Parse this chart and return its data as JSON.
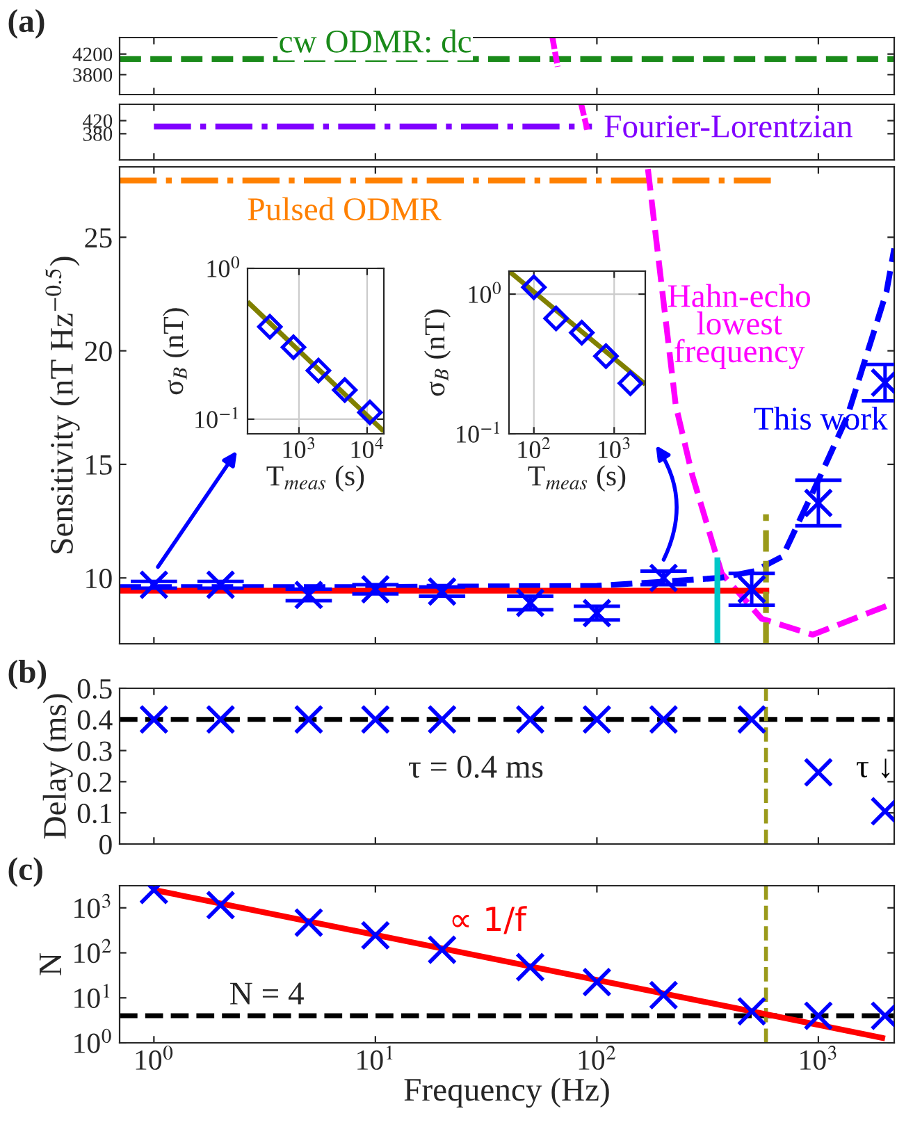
{
  "chart_data": [
    {
      "type": "line",
      "title": "(a)",
      "xlim": [
        0.7,
        2200
      ],
      "xticks": [
        1,
        10,
        100,
        1000
      ],
      "log": "xy",
      "ylim": [
        3450,
        4550
      ],
      "yticks": [
        3800,
        4200
      ],
      "tick_labels": "y",
      "series": [
        {
          "name": "cw ODMR: dc",
          "color": "#1a8a1a",
          "line_style": "dashed",
          "x": [
            0.7,
            2200
          ],
          "values": [
            4100,
            4100
          ]
        },
        {
          "color": "#ff00ff",
          "line_style": "dashed",
          "x": [
            63,
            66.5
          ],
          "values": [
            4550,
            3950
          ]
        }
      ]
    },
    {
      "type": "line",
      "xlim": [
        0.7,
        2200
      ],
      "xticks": [
        1,
        10,
        100,
        1000
      ],
      "log": "x",
      "ylim": [
        300,
        470
      ],
      "yticks": [
        380,
        420
      ],
      "tick_labels": "y",
      "series": [
        {
          "name": "Fourier-Lorentzian",
          "color": "#8000ff",
          "line_style": "dashdot",
          "x": [
            1,
            95
          ],
          "values": [
            402,
            402
          ]
        },
        {
          "color": "#ff00ff",
          "line_style": "dashed",
          "x": [
            85,
            91
          ],
          "values": [
            470,
            385
          ]
        }
      ]
    },
    {
      "type": "line",
      "ylabel": "Sensitivity (nT Hz$^{−0.5}$)",
      "xlim": [
        0.7,
        2200
      ],
      "xticks": [
        1,
        10,
        100,
        1000
      ],
      "log": "x",
      "ylim": [
        7.1,
        28.1
      ],
      "yticks": [
        10,
        15,
        20,
        25
      ],
      "tick_labels": "y",
      "series": [
        {
          "name": "Pulsed ODMR",
          "color": "#ff8000",
          "line_style": "dashdot",
          "x": [
            0.7,
            610
          ],
          "values": [
            27.5,
            27.5
          ]
        },
        {
          "name": "Hahn-echo\nlowest\nfrequency",
          "color": "#ff00ff",
          "line_style": "dashed",
          "x": [
            170,
            227,
            270,
            366,
            555,
            944,
            2200
          ],
          "values": [
            28.0,
            17.6,
            14.5,
            10.2,
            8.2,
            7.5,
            8.9
          ]
        },
        {
          "name": "This work",
          "color": "#0000ff",
          "line_style": "dashed",
          "x": [
            0.7,
            10,
            100,
            360,
            515,
            690,
            1000,
            1350,
            2030,
            2200
          ],
          "values": [
            9.6,
            9.6,
            9.65,
            10.0,
            10.3,
            10.95,
            14.3,
            17.1,
            22.6,
            24.5
          ]
        },
        {
          "color": "#ff0000",
          "line_style": "solid",
          "x": [
            0.7,
            600
          ],
          "values": [
            9.44,
            9.44
          ]
        },
        {
          "type": "scatter",
          "marker": "cross",
          "color": "#0000ff",
          "x": [
            1,
            2,
            5,
            10,
            20,
            50,
            100,
            200,
            500,
            1000,
            2000
          ],
          "values": [
            9.7,
            9.7,
            9.25,
            9.5,
            9.4,
            8.9,
            8.45,
            10.0,
            9.5,
            13.3,
            18.6
          ],
          "errors": [
            0.15,
            0.15,
            0.25,
            0.2,
            0.2,
            0.3,
            0.3,
            0.3,
            0.7,
            1.0,
            0.8
          ]
        },
        {
          "color": "#00c8c8",
          "line_style": "solid",
          "x": [
            350,
            350
          ],
          "values": [
            7.1,
            10.9
          ]
        },
        {
          "color": "#9a9a1a",
          "line_style": "dashed",
          "x": [
            580,
            580
          ],
          "values": [
            7.1,
            12.8
          ]
        }
      ]
    },
    {
      "type": "scatter",
      "xlabel": "T$_{meas}$ (s)",
      "ylabel": "σ$_{B}$ (nT)",
      "log": "xy",
      "xlim": [
        176,
        17600
      ],
      "ylim": [
        0.08,
        1
      ],
      "xticks": [
        {
          "value": 1000,
          "label": "10$^{3}$"
        },
        {
          "value": 10000,
          "label": "10$^{4}$"
        }
      ],
      "yticks": [
        {
          "value": 0.1,
          "label": "10$^{−1}$"
        },
        {
          "value": 1,
          "label": "10$^{0}$"
        }
      ],
      "grid": true,
      "series": [
        {
          "type": "line",
          "color": "#808000",
          "line_style": "solid",
          "x": [
            176,
            17600
          ],
          "values": [
            0.6,
            0.083
          ]
        },
        {
          "marker": "diamond",
          "color": "#0000ff",
          "x": [
            374,
            830,
            1930,
            4700,
            11000
          ],
          "values": [
            0.41,
            0.3,
            0.21,
            0.156,
            0.111
          ]
        }
      ]
    },
    {
      "type": "scatter",
      "xlabel": "T$_{meas}$ (s)",
      "ylabel": "σ$_{B}$ (nT)",
      "log": "xy",
      "xlim": [
        49,
        2440
      ],
      "ylim": [
        0.1,
        1.46
      ],
      "xticks": [
        {
          "value": 100,
          "label": "10$^{2}$"
        },
        {
          "value": 1000,
          "label": "10$^{3}$"
        }
      ],
      "yticks": [
        {
          "value": 0.1,
          "label": "10$^{−1}$"
        },
        {
          "value": 1,
          "label": "10$^{0}$"
        }
      ],
      "grid": true,
      "series": [
        {
          "type": "line",
          "color": "#808000",
          "line_style": "solid",
          "x": [
            49,
            2440
          ],
          "values": [
            1.46,
            0.226
          ]
        },
        {
          "marker": "diamond",
          "color": "#0000ff",
          "x": [
            100,
            189,
            395,
            790,
            1590
          ],
          "values": [
            1.12,
            0.67,
            0.53,
            0.36,
            0.23
          ]
        }
      ]
    },
    {
      "type": "scatter",
      "title": "(b)",
      "ylabel": "Delay (ms)",
      "log": "x",
      "xlim": [
        0.7,
        2200
      ],
      "xticks": [
        1,
        10,
        100,
        1000
      ],
      "ylim": [
        0,
        0.5
      ],
      "yticks": [
        0,
        0.1,
        0.2,
        0.3,
        0.4,
        0.5
      ],
      "tick_labels": "y",
      "marker": "cross",
      "x": [
        1,
        2,
        5,
        10,
        20,
        50,
        100,
        200,
        500,
        1000,
        2000
      ],
      "series": [
        {
          "color": "#0000ff",
          "values": [
            0.4,
            0.4,
            0.4,
            0.4,
            0.4,
            0.4,
            0.4,
            0.4,
            0.4,
            0.23,
            0.105
          ]
        }
      ],
      "ref_lines": [
        {
          "axis": "y",
          "value": 0.4,
          "label": "τ = 0.4 ms",
          "color": "#000000",
          "line_style": "dashed"
        },
        {
          "axis": "x",
          "value": 580,
          "color": "#9a9a1a",
          "line_style": "dashed"
        }
      ],
      "annotations": [
        "τ ↓"
      ]
    },
    {
      "type": "scatter",
      "title": "(c)",
      "xlabel": "Frequency (Hz)",
      "ylabel": "N",
      "log": "xy",
      "xlim": [
        0.7,
        2200
      ],
      "xticks": [
        {
          "value": 1,
          "label": "10$^{0}$"
        },
        {
          "value": 10,
          "label": "10$^{1}$"
        },
        {
          "value": 100,
          "label": "10$^{2}$"
        },
        {
          "value": 1000,
          "label": "10$^{3}$"
        }
      ],
      "ylim": [
        1,
        3100
      ],
      "yticks": [
        {
          "value": 1,
          "label": "10$^{0}$"
        },
        {
          "value": 10,
          "label": "10$^{1}$"
        },
        {
          "value": 100,
          "label": "10$^{2}$"
        },
        {
          "value": 1000,
          "label": "10$^{3}$"
        }
      ],
      "series": [
        {
          "type": "line",
          "color": "#ff0000",
          "line_style": "solid",
          "x": [
            1,
            2000
          ],
          "values": [
            2500,
            1.25
          ]
        },
        {
          "marker": "cross",
          "color": "#0000ff",
          "x": [
            1,
            2,
            5,
            10,
            20,
            50,
            100,
            200,
            500,
            1000,
            2000
          ],
          "values": [
            2500,
            1150,
            470,
            245,
            117,
            48,
            22.4,
            11.5,
            5,
            4,
            4
          ]
        }
      ],
      "ref_lines": [
        {
          "axis": "y",
          "value": 4,
          "label": "N = 4",
          "color": "#000000",
          "line_style": "dashed"
        },
        {
          "axis": "x",
          "value": 580,
          "color": "#9a9a1a",
          "line_style": "dashed"
        }
      ],
      "annotations": [
        "∝ 1/f"
      ]
    }
  ]
}
